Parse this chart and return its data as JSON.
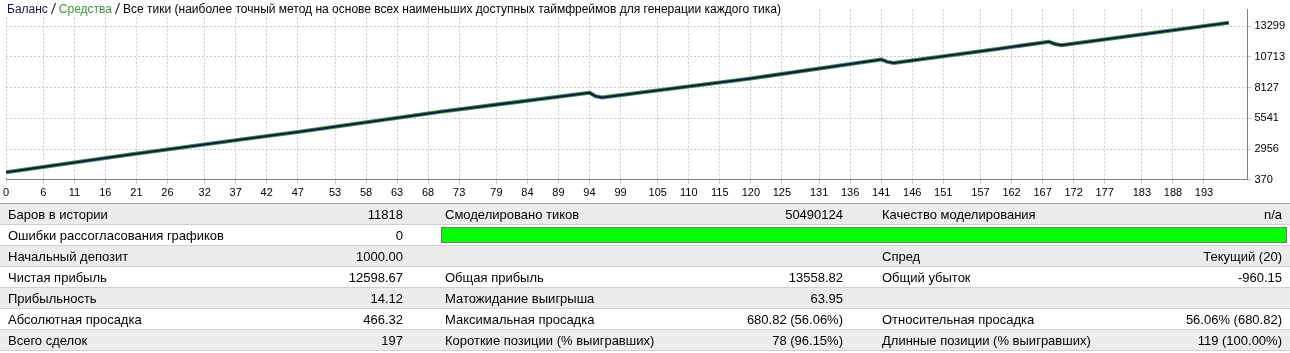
{
  "chart_data": [
    {
      "type": "line",
      "title": "Все тики (наиболее точный метод на основе всех наименьших доступных таймфреймов для генерации каждого тика)",
      "x": [
        0,
        20,
        47,
        70,
        94,
        95,
        96,
        120,
        141,
        142,
        143,
        160,
        168,
        169,
        170,
        197
      ],
      "series": [
        {
          "name": "Баланс",
          "color": "#14145a",
          "values": [
            1000,
            2500,
            4400,
            6100,
            7700,
            7400,
            7300,
            8900,
            10500,
            10300,
            10200,
            11400,
            12000,
            11800,
            11700,
            13600
          ]
        },
        {
          "name": "Средства",
          "color": "#3a9a3a",
          "values": [
            1000,
            2500,
            4400,
            6100,
            7700,
            7400,
            7300,
            8900,
            10500,
            10300,
            10200,
            11400,
            12000,
            11800,
            11700,
            13600
          ]
        }
      ],
      "xlim": [
        0,
        200
      ],
      "xticks": [
        0,
        6,
        11,
        16,
        21,
        26,
        32,
        37,
        42,
        47,
        53,
        58,
        63,
        68,
        73,
        79,
        84,
        89,
        94,
        99,
        105,
        110,
        115,
        120,
        125,
        131,
        136,
        141,
        146,
        151,
        157,
        162,
        167,
        172,
        177,
        183,
        188,
        193
      ],
      "ylim": [
        370,
        14700
      ],
      "yticks": [
        370,
        2956,
        5541,
        8127,
        10713,
        13299
      ],
      "grid": true,
      "legend": "top left",
      "marker": "none",
      "line_style": "solid"
    },
    {
      "type": "other",
      "annotations": [
        "Баров в истории",
        "11818",
        "Смоделировано тиков",
        "50490124",
        "Качество моделирования",
        "n/a",
        "Ошибки рассогласования графиков",
        "0",
        "Начальный депозит",
        "1000.00",
        "Спред",
        "Текущий (20)",
        "Чистая прибыль",
        "12598.67",
        "Общая прибыль",
        "13558.82",
        "Общий убыток",
        "-960.15",
        "Прибыльность",
        "14.12",
        "Матожидание выигрыша",
        "63.95",
        "Абсолютная просадка",
        "466.32",
        "Максимальная просадка",
        "680.82 (56.06%)",
        "Относительная просадка",
        "56.06% (680.82)",
        "Всего сделок",
        "197",
        "Короткие позиции (% выигравших)",
        "78 (96.15%)",
        "Длинные позиции (% выигравших)",
        "119 (100.00%)"
      ]
    }
  ]
}
